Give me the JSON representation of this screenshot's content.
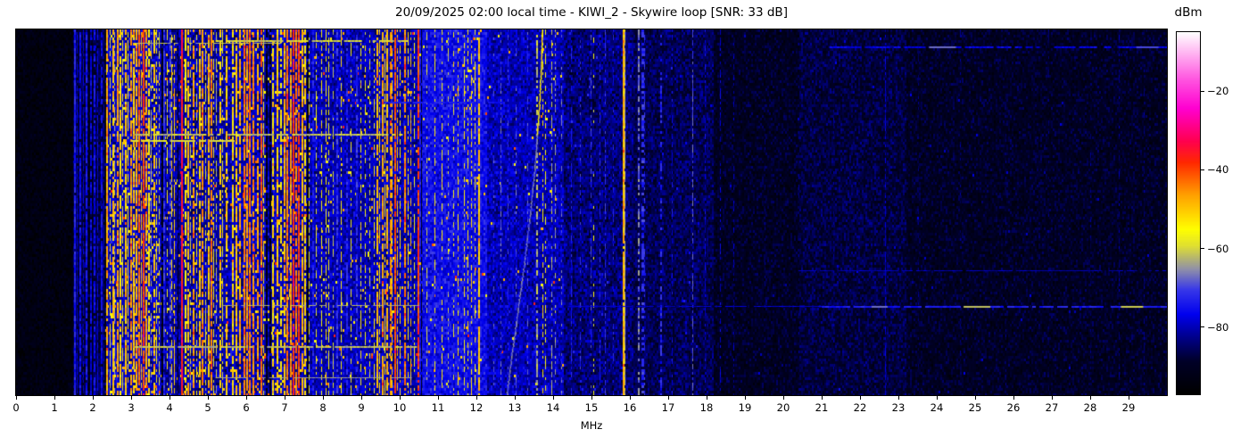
{
  "chart_data": {
    "type": "heatmap",
    "title": "20/09/2025 02:00 local time - KIWI_2 - Skywire loop [SNR: 33 dB]",
    "xlabel": "MHz",
    "x_range": [
      0,
      30
    ],
    "x_ticks": [
      0,
      1,
      2,
      3,
      4,
      5,
      6,
      7,
      8,
      9,
      10,
      11,
      12,
      13,
      14,
      15,
      16,
      17,
      18,
      19,
      20,
      21,
      22,
      23,
      24,
      25,
      26,
      27,
      28,
      29
    ],
    "colorbar_label": "dBm",
    "dbm_range": [
      -97,
      -5
    ],
    "colorbar_ticks": [
      {
        "value": -20,
        "label": "−20"
      },
      {
        "value": -40,
        "label": "−40"
      },
      {
        "value": -60,
        "label": "−60"
      },
      {
        "value": -80,
        "label": "−80"
      }
    ],
    "legend_position": "right",
    "seed": 20250920,
    "colormap": [
      [
        0.0,
        "#000000"
      ],
      [
        0.09,
        "#000028"
      ],
      [
        0.16,
        "#000090"
      ],
      [
        0.22,
        "#0000ee"
      ],
      [
        0.29,
        "#3a3ae8"
      ],
      [
        0.345,
        "#9090a8"
      ],
      [
        0.41,
        "#e0e030"
      ],
      [
        0.455,
        "#ffff00"
      ],
      [
        0.55,
        "#ffa000"
      ],
      [
        0.64,
        "#ff2800"
      ],
      [
        0.7,
        "#ff0050"
      ],
      [
        0.79,
        "#ff00d0"
      ],
      [
        0.87,
        "#ff55e0"
      ],
      [
        1.0,
        "#ffffff"
      ]
    ],
    "format": {
      "noise_regions": "[fromMHz, toMHz, leveldBm, spreaddB, speckleProb]",
      "stripes": "[MHz, leveldBm, widthPx, dutyCycle]",
      "gaps": "[MHz, widthPx]",
      "h_features": "[yPx, fromMHz, toMHz, leveldBm, heightPx]",
      "h_dashes": "[yPx, MHz, lengthPx, leveldBm]"
    },
    "noise_regions": [
      [
        0,
        1.48,
        -93.5,
        5,
        0
      ],
      [
        1.48,
        2.34,
        -87,
        7,
        0.004
      ],
      [
        2.34,
        3.76,
        -79,
        9,
        0.06
      ],
      [
        3.76,
        5.5,
        -81,
        9,
        0.04
      ],
      [
        5.5,
        7.6,
        -80,
        9,
        0.05
      ],
      [
        7.6,
        10.5,
        -80,
        8,
        0.02
      ],
      [
        10.5,
        12.3,
        -75.5,
        7,
        0.012
      ],
      [
        12.3,
        14.3,
        -80,
        8,
        0.008
      ],
      [
        14.3,
        16.1,
        -84,
        8,
        0.005
      ],
      [
        16.1,
        18.2,
        -86,
        7,
        0.004
      ],
      [
        18.2,
        20.4,
        -90,
        6.5,
        0.002
      ],
      [
        20.4,
        23.2,
        -87.5,
        7,
        0.002
      ],
      [
        23.2,
        30,
        -89.8,
        6.5,
        0.002
      ]
    ],
    "stripes": [
      [
        1.51,
        -74,
        2,
        0.95
      ],
      [
        1.58,
        -78,
        1,
        0.85
      ],
      [
        1.66,
        -76,
        2,
        0.9
      ],
      [
        1.74,
        -79,
        1,
        0.8
      ],
      [
        1.81,
        -75,
        2,
        0.9
      ],
      [
        1.94,
        -77,
        2,
        0.85
      ],
      [
        2.03,
        -76,
        2,
        0.85
      ],
      [
        2.12,
        -78,
        1,
        0.8
      ],
      [
        2.2,
        -76,
        2,
        0.85
      ],
      [
        2.27,
        -80,
        1,
        0.7
      ],
      [
        2.36,
        -48,
        2,
        0.9
      ],
      [
        2.44,
        -58,
        1,
        0.7
      ],
      [
        2.5,
        -50,
        2,
        0.8
      ],
      [
        2.56,
        -63,
        1,
        0.6
      ],
      [
        2.62,
        -47,
        2,
        0.85
      ],
      [
        2.7,
        -52,
        2,
        0.8
      ],
      [
        2.77,
        -57,
        1,
        0.7
      ],
      [
        2.84,
        -50,
        2,
        0.8
      ],
      [
        2.9,
        -55,
        1,
        0.7
      ],
      [
        2.97,
        -46,
        2,
        0.85
      ],
      [
        3.04,
        -51,
        2,
        0.8
      ],
      [
        3.12,
        -48,
        2,
        0.8
      ],
      [
        3.19,
        -43,
        2,
        0.85
      ],
      [
        3.26,
        -50,
        1,
        0.8
      ],
      [
        3.31,
        -40,
        2,
        0.9
      ],
      [
        3.38,
        -47,
        2,
        0.8
      ],
      [
        3.45,
        -53,
        2,
        0.75
      ],
      [
        3.52,
        -63,
        1,
        0.6
      ],
      [
        3.58,
        -50,
        2,
        0.75
      ],
      [
        3.65,
        -56,
        1,
        0.65
      ],
      [
        3.72,
        -60,
        1,
        0.6
      ],
      [
        3.84,
        -72,
        2,
        0.8
      ],
      [
        3.92,
        -56,
        1,
        0.55
      ],
      [
        3.99,
        -70,
        2,
        0.7
      ],
      [
        4.05,
        -52,
        1,
        0.7
      ],
      [
        4.12,
        -50,
        1,
        0.7
      ],
      [
        4.3,
        -36,
        2,
        0.95
      ],
      [
        4.4,
        -54,
        2,
        0.7
      ],
      [
        4.47,
        -49,
        2,
        0.8
      ],
      [
        4.54,
        -61,
        1,
        0.6
      ],
      [
        4.61,
        -47,
        2,
        0.8
      ],
      [
        4.69,
        -57,
        1,
        0.6
      ],
      [
        4.76,
        -51,
        2,
        0.75
      ],
      [
        4.84,
        -46,
        2,
        0.8
      ],
      [
        4.92,
        -59,
        1,
        0.6
      ],
      [
        5.0,
        -49,
        2,
        0.8
      ],
      [
        5.07,
        -44,
        2,
        0.85
      ],
      [
        5.14,
        -56,
        1,
        0.6
      ],
      [
        5.22,
        -62,
        1,
        0.6
      ],
      [
        5.3,
        -51,
        2,
        0.7
      ],
      [
        5.38,
        -57,
        1,
        0.6
      ],
      [
        5.46,
        -50,
        2,
        0.75
      ],
      [
        5.62,
        -52,
        2,
        0.8
      ],
      [
        5.72,
        -50,
        2,
        0.8
      ],
      [
        5.82,
        -48,
        2,
        0.8
      ],
      [
        5.92,
        -44,
        2,
        0.9
      ],
      [
        6.0,
        -46,
        2,
        0.85
      ],
      [
        6.08,
        -43,
        2,
        0.9
      ],
      [
        6.17,
        -45,
        2,
        0.85
      ],
      [
        6.28,
        -47,
        2,
        0.8
      ],
      [
        6.37,
        -42,
        2,
        0.85
      ],
      [
        6.45,
        -55,
        1,
        0.7
      ],
      [
        6.68,
        -52,
        2,
        0.75
      ],
      [
        6.78,
        -50,
        2,
        0.8
      ],
      [
        6.88,
        -54,
        2,
        0.7
      ],
      [
        6.97,
        -49,
        2,
        0.8
      ],
      [
        7.05,
        -44,
        2,
        0.9
      ],
      [
        7.13,
        -47,
        2,
        0.85
      ],
      [
        7.2,
        -38,
        2,
        0.92
      ],
      [
        7.28,
        -44,
        2,
        0.85
      ],
      [
        7.35,
        -40,
        2,
        0.9
      ],
      [
        7.44,
        -48,
        2,
        0.8
      ],
      [
        7.52,
        -52,
        2,
        0.75
      ],
      [
        7.62,
        -57,
        1,
        0.6
      ],
      [
        7.72,
        -74,
        2,
        0.7
      ],
      [
        7.82,
        -58,
        1,
        0.5
      ],
      [
        7.95,
        -56,
        1,
        0.6
      ],
      [
        8.07,
        -54,
        1,
        0.7
      ],
      [
        8.13,
        -56,
        1,
        0.6
      ],
      [
        8.25,
        -60,
        1,
        0.5
      ],
      [
        8.35,
        -72,
        2,
        0.7
      ],
      [
        8.47,
        -55,
        1,
        0.55
      ],
      [
        8.6,
        -73,
        2,
        0.6
      ],
      [
        8.72,
        -56,
        1,
        0.5
      ],
      [
        8.85,
        -72,
        2,
        0.6
      ],
      [
        8.97,
        -54,
        1,
        0.6
      ],
      [
        9.1,
        -57,
        1,
        0.5
      ],
      [
        9.22,
        -59,
        1,
        0.45
      ],
      [
        9.32,
        -56,
        1,
        0.5
      ],
      [
        9.4,
        -49,
        2,
        0.8
      ],
      [
        9.47,
        -53,
        1,
        0.7
      ],
      [
        9.53,
        -47,
        2,
        0.8
      ],
      [
        9.6,
        -55,
        1,
        0.6
      ],
      [
        9.66,
        -49,
        2,
        0.75
      ],
      [
        9.74,
        -45,
        2,
        0.8
      ],
      [
        9.8,
        -51,
        1,
        0.7
      ],
      [
        9.87,
        -41,
        2,
        0.9
      ],
      [
        9.94,
        -49,
        1,
        0.7
      ],
      [
        10.01,
        -54,
        1,
        0.6
      ],
      [
        10.12,
        -45,
        2,
        0.8
      ],
      [
        10.21,
        -54,
        1,
        0.6
      ],
      [
        10.29,
        -49,
        1,
        0.6
      ],
      [
        10.38,
        -57,
        1,
        0.5
      ],
      [
        10.46,
        -40,
        2,
        0.9
      ],
      [
        10.7,
        -59,
        1,
        0.4
      ],
      [
        10.9,
        -54,
        1,
        0.5
      ],
      [
        11.09,
        -55,
        1,
        0.5
      ],
      [
        11.25,
        -61,
        1,
        0.35
      ],
      [
        11.4,
        -57,
        1,
        0.4
      ],
      [
        11.52,
        -53,
        1,
        0.5
      ],
      [
        11.67,
        -55,
        1,
        0.5
      ],
      [
        11.76,
        -54,
        1,
        0.55
      ],
      [
        11.85,
        -53,
        1,
        0.55
      ],
      [
        11.95,
        -56,
        1,
        0.45
      ],
      [
        12.05,
        -50,
        2,
        0.9
      ],
      [
        12.45,
        -70,
        1,
        0.4
      ],
      [
        12.62,
        -68,
        1,
        0.5
      ],
      [
        12.82,
        -71,
        1,
        0.4
      ],
      [
        13.02,
        -68,
        1,
        0.4
      ],
      [
        13.32,
        -70,
        1,
        0.35
      ],
      [
        13.55,
        -62,
        2,
        0.5
      ],
      [
        13.72,
        -54,
        1,
        0.45
      ],
      [
        13.8,
        -56,
        1,
        0.4
      ],
      [
        13.95,
        -62,
        1,
        0.5
      ],
      [
        14.05,
        -64,
        1,
        0.4
      ],
      [
        14.2,
        -67,
        1,
        0.35
      ],
      [
        14.46,
        -74,
        1,
        0.55
      ],
      [
        14.7,
        -72,
        1,
        0.4
      ],
      [
        14.97,
        -71,
        1,
        0.55
      ],
      [
        15.05,
        -57,
        1,
        0.25
      ],
      [
        15.2,
        -73,
        1,
        0.45
      ],
      [
        15.35,
        -72,
        1,
        0.45
      ],
      [
        15.55,
        -74,
        1,
        0.4
      ],
      [
        15.81,
        -49,
        2,
        0.97
      ],
      [
        15.87,
        -63,
        1,
        0.85
      ],
      [
        16.22,
        -67,
        2,
        0.55
      ],
      [
        16.3,
        -72,
        3,
        0.6
      ],
      [
        16.38,
        -72,
        1,
        0.45
      ],
      [
        16.8,
        -73,
        2,
        0.5
      ],
      [
        17.1,
        -76,
        1,
        0.45
      ],
      [
        17.62,
        -69,
        1,
        0.7
      ],
      [
        17.95,
        -77,
        1,
        0.4
      ],
      [
        18.35,
        -78,
        1,
        0.4
      ],
      [
        18.7,
        -80,
        1,
        0.45
      ],
      [
        19.5,
        -85,
        1,
        0.3
      ],
      [
        20.4,
        -84,
        1,
        0.3
      ],
      [
        21.3,
        -83,
        1,
        0.3
      ],
      [
        22.65,
        -79,
        1,
        0.7
      ],
      [
        23.5,
        -85,
        1,
        0.3
      ],
      [
        24.6,
        -84,
        1,
        0.3
      ],
      [
        25.8,
        -85,
        1,
        0.25
      ],
      [
        26.9,
        -85,
        1,
        0.25
      ],
      [
        28.0,
        -84,
        1,
        0.3
      ],
      [
        28.75,
        -82,
        1,
        0.4
      ],
      [
        29.4,
        -84,
        1,
        0.3
      ]
    ],
    "gaps": [
      [
        1.88,
        2
      ],
      [
        1.98,
        1
      ],
      [
        2.31,
        2
      ],
      [
        3.78,
        2
      ],
      [
        4.2,
        1
      ],
      [
        6.52,
        2
      ],
      [
        6.6,
        2
      ],
      [
        7.57,
        2
      ],
      [
        10.55,
        1
      ]
    ],
    "h_features": [
      [
        45,
        5.2,
        10.3,
        -60,
        2
      ],
      [
        48,
        3.1,
        6.9,
        -62,
        1
      ],
      [
        114,
        9.6,
        12.6,
        -74,
        2
      ],
      [
        150,
        3.1,
        10.1,
        -61,
        2
      ],
      [
        157,
        3.0,
        5.7,
        -60,
        2
      ],
      [
        342,
        5.4,
        10.5,
        -63,
        1
      ],
      [
        388,
        3.1,
        10.4,
        -62,
        2
      ],
      [
        423,
        5.2,
        10.3,
        -64,
        1
      ],
      [
        52,
        21.2,
        29.95,
        -77,
        2
      ],
      [
        303,
        20.3,
        29.95,
        -80,
        1
      ],
      [
        343,
        14.3,
        21.0,
        -78,
        1
      ],
      [
        343,
        21.0,
        29.95,
        -74,
        2
      ]
    ],
    "h_dashes": [
      [
        52,
        23.8,
        30,
        -66
      ],
      [
        52,
        29.2,
        25,
        -70
      ],
      [
        343,
        22.3,
        18,
        -67
      ],
      [
        343,
        24.7,
        30,
        -62
      ],
      [
        343,
        28.8,
        25,
        -60
      ]
    ],
    "chirp": {
      "points": [
        [
          12.78,
          443
        ],
        [
          12.92,
          395
        ],
        [
          13.08,
          345
        ],
        [
          13.24,
          295
        ],
        [
          13.38,
          245
        ],
        [
          13.5,
          195
        ],
        [
          13.58,
          150
        ],
        [
          13.64,
          110
        ],
        [
          13.68,
          70
        ],
        [
          13.71,
          33
        ]
      ],
      "level_low": -67,
      "level_top": -53,
      "echo_offset_mhz": -0.28,
      "echo_level": -77
    }
  }
}
